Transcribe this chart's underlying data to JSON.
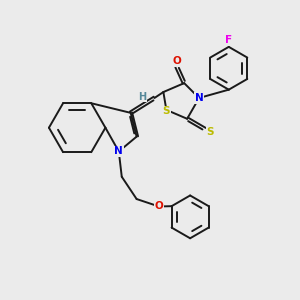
{
  "bg_color": "#ebebeb",
  "bond_color": "#1a1a1a",
  "N_color": "#0000ee",
  "O_color": "#dd1100",
  "S_color": "#bbbb00",
  "F_color": "#ee00ee",
  "H_color": "#558899",
  "lw": 1.4,
  "xlim": [
    0,
    10
  ],
  "ylim": [
    0,
    10
  ]
}
